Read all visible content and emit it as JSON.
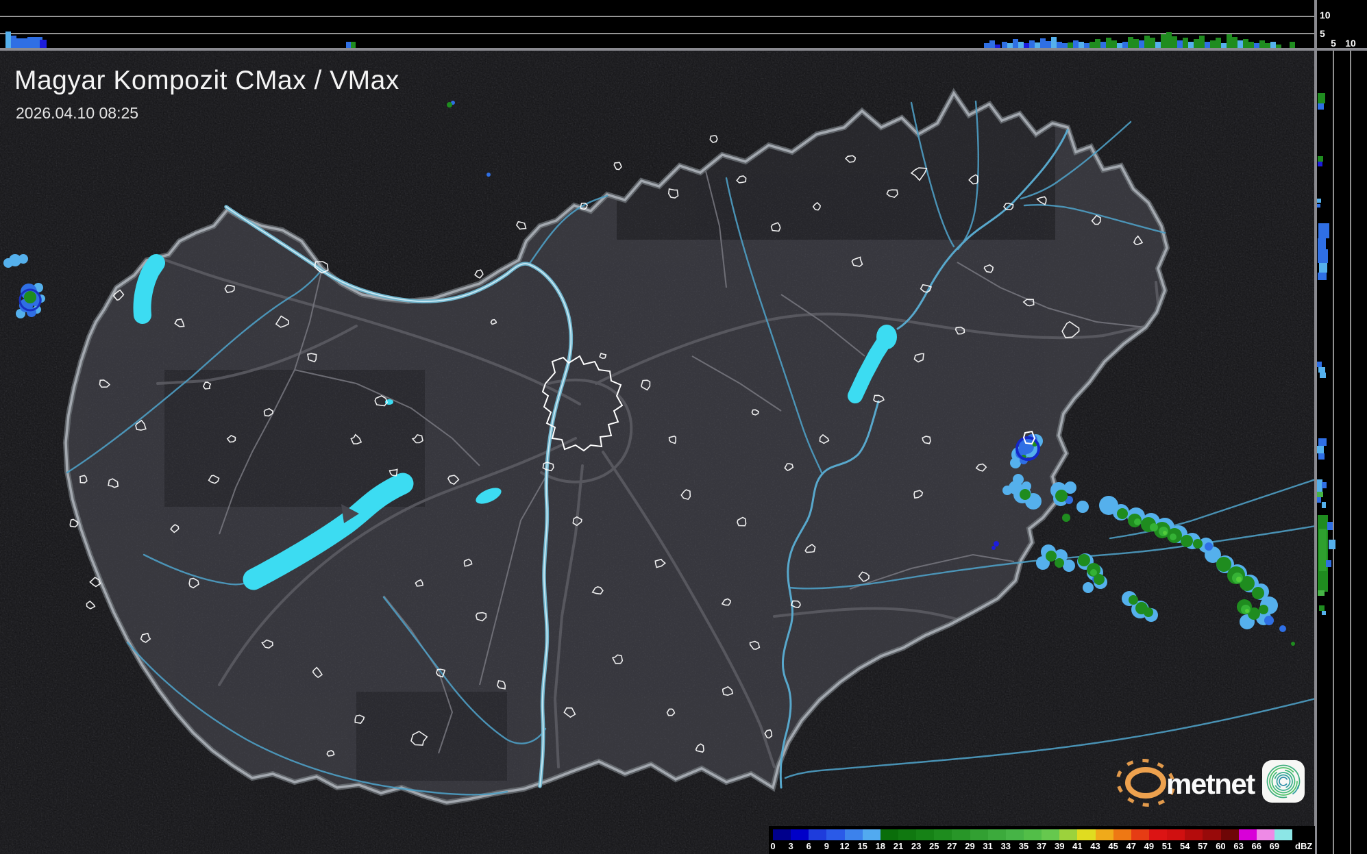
{
  "header": {
    "title": "Magyar Kompozit CMax / VMax",
    "timestamp": "2026.04.10 08:25"
  },
  "top_profile": {
    "axis_labels": [
      "10",
      "5"
    ]
  },
  "right_profile": {
    "axis_labels": [
      "5",
      "10"
    ]
  },
  "legend": {
    "unit_label": "dBZ",
    "tick_labels": [
      "0",
      "3",
      "6",
      "9",
      "12",
      "15",
      "18",
      "21",
      "23",
      "25",
      "27",
      "29",
      "31",
      "33",
      "35",
      "37",
      "39",
      "41",
      "43",
      "45",
      "47",
      "49",
      "51",
      "54",
      "57",
      "60",
      "63",
      "66",
      "69"
    ],
    "colors": [
      "#00008c",
      "#0000c8",
      "#1e3cdc",
      "#2a5ae8",
      "#3c82ec",
      "#52aaf0",
      "#0a6e0a",
      "#107810",
      "#168216",
      "#1e8c1e",
      "#289628",
      "#32a032",
      "#3caa3c",
      "#46b446",
      "#52be48",
      "#66c84e",
      "#9cd23c",
      "#e0dc20",
      "#f0aa1a",
      "#ee7814",
      "#e63c14",
      "#dc1414",
      "#d01010",
      "#b40c0c",
      "#980a0a",
      "#6e0606",
      "#d800d8",
      "#ee8ae6",
      "#8ce6e6"
    ]
  },
  "branding": {
    "logo_text": "metnet"
  },
  "colors": {
    "water": "#3cdcf2",
    "country_border": "#a8adb4",
    "river": "#4e9ec4",
    "settlement_outline": "#ffffff",
    "divider": "#8a8a90",
    "grid_line": "#ffffff",
    "sun_orange": "#eda14e",
    "echo_green": "#1f8c1f",
    "echo_blue": "#2f6fe4",
    "echo_light_blue": "#55b0ec"
  }
}
